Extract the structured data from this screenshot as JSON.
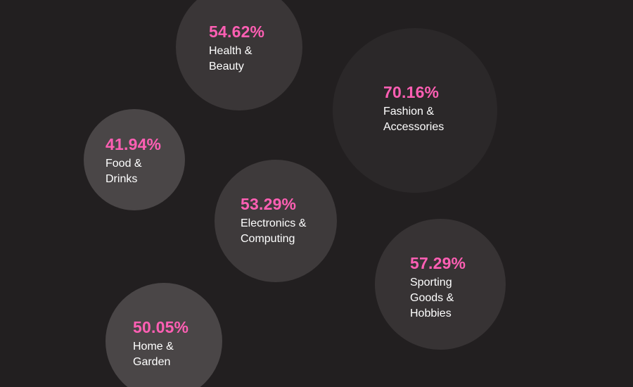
{
  "colors": {
    "background": "#221f20",
    "value_text": "#ff5fb4",
    "label_text": "#ffffff"
  },
  "chart_data": {
    "type": "bubble",
    "value_unit": "%",
    "points": [
      {
        "value": 54.62,
        "value_label": "54.62%",
        "label_lines": [
          "Health &",
          "Beauty"
        ],
        "fill": "#3a3637"
      },
      {
        "value": 70.16,
        "value_label": "70.16%",
        "label_lines": [
          "Fashion &",
          "Accessories"
        ],
        "fill": "#2b2829"
      },
      {
        "value": 41.94,
        "value_label": "41.94%",
        "label_lines": [
          "Food &",
          "Drinks"
        ],
        "fill": "#4a4647"
      },
      {
        "value": 53.29,
        "value_label": "53.29%",
        "label_lines": [
          "Electronics &",
          "Computing"
        ],
        "fill": "#3e3a3b"
      },
      {
        "value": 57.29,
        "value_label": "57.29%",
        "label_lines": [
          "Sporting",
          "Goods &",
          "Hobbies"
        ],
        "fill": "#373334"
      },
      {
        "value": 50.05,
        "value_label": "50.05%",
        "label_lines": [
          "Home &",
          "Garden"
        ],
        "fill": "#4a4647"
      }
    ]
  }
}
